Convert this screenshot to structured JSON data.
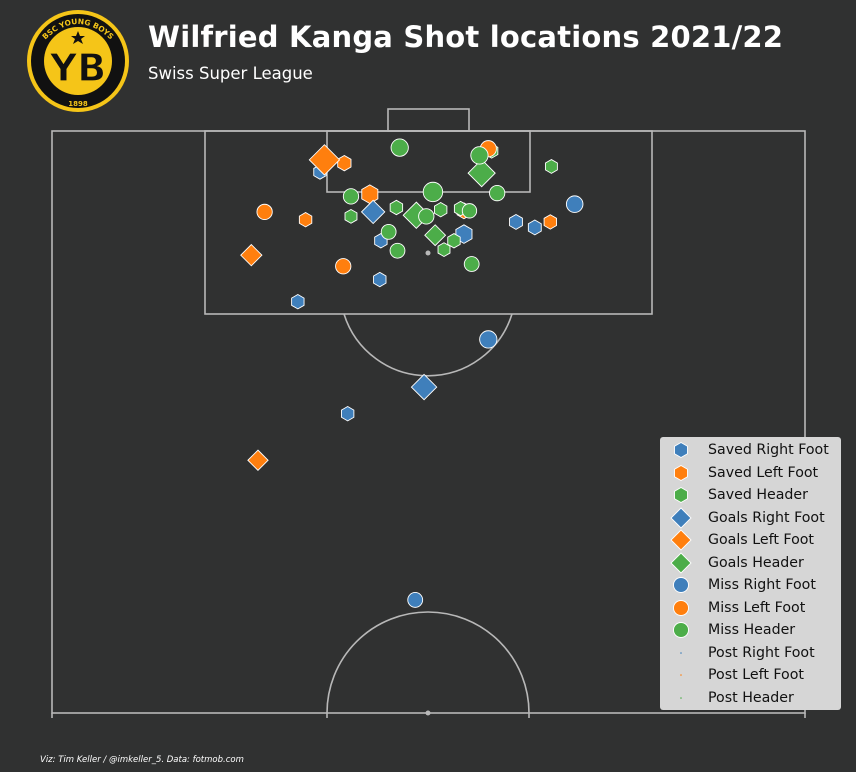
{
  "header": {
    "title": "Wilfried Kanga Shot locations 2021/22",
    "subtitle": "Swiss Super League",
    "logo_top_text": "BSC YOUNG BOYS",
    "logo_letters": "YB",
    "logo_year": "1898"
  },
  "footer": {
    "credit": "Viz: Tim Keller / @imkeller_5. Data: fotmob.com"
  },
  "colors": {
    "background": "#303131",
    "pitch_lines": "#b8b8b8",
    "right_foot": "#3f7fbb",
    "left_foot": "#ff7f0e",
    "header": "#4cad49",
    "legend_bg": "#d6d6d6",
    "logo_yellow": "#f5c518",
    "logo_black": "#111111"
  },
  "chart_data": {
    "type": "scatter",
    "title": "Wilfried Kanga Shot locations 2021/22",
    "subtitle": "Swiss Super League",
    "pitch": {
      "orientation": "vertical-half",
      "attacking": "top",
      "length_m": 105,
      "width_m": 68
    },
    "marker_shapes": {
      "Saved": "hexagon",
      "Goals": "diamond",
      "Miss": "circle",
      "Post": "point"
    },
    "marker_colors": {
      "Right Foot": "#3f7fbb",
      "Left Foot": "#ff7f0e",
      "Header": "#4cad49"
    },
    "size_note": "marker size encodes xG",
    "legend_placement": "lower-right",
    "legend": [
      "Saved Right Foot",
      "Saved Left Foot",
      "Saved Header",
      "Goals Right Foot",
      "Goals Left Foot",
      "Goals Header",
      "Miss Right Foot",
      "Miss Left Foot",
      "Miss Header",
      "Post Right Foot",
      "Post Left Foot",
      "Post Header"
    ],
    "series": [
      {
        "name": "Saved Right Foot",
        "outcome": "Saved",
        "body_part": "Right Foot",
        "shape": "hexagon",
        "color": "#3f7fbb",
        "points": [
          {
            "x": 24.2,
            "y": 101.3,
            "xg": 0.05
          },
          {
            "x": 29.7,
            "y": 95.1,
            "xg": 0.05
          },
          {
            "x": 37.2,
            "y": 95.7,
            "xg": 0.16
          },
          {
            "x": 41.9,
            "y": 96.8,
            "xg": 0.06
          },
          {
            "x": 43.6,
            "y": 96.3,
            "xg": 0.06
          },
          {
            "x": 29.6,
            "y": 91.6,
            "xg": 0.05
          },
          {
            "x": 22.2,
            "y": 89.6,
            "xg": 0.05
          },
          {
            "x": 26.7,
            "y": 79.5,
            "xg": 0.05
          }
        ]
      },
      {
        "name": "Saved Left Foot",
        "outcome": "Saved",
        "body_part": "Left Foot",
        "shape": "hexagon",
        "color": "#ff7f0e",
        "points": [
          {
            "x": 26.4,
            "y": 102.1,
            "xg": 0.07
          },
          {
            "x": 22.9,
            "y": 97.0,
            "xg": 0.05
          },
          {
            "x": 28.7,
            "y": 99.3,
            "xg": 0.16
          },
          {
            "x": 37.2,
            "y": 97.8,
            "xg": 0.08
          },
          {
            "x": 45.0,
            "y": 96.8,
            "xg": 0.05
          }
        ]
      },
      {
        "name": "Saved Header",
        "outcome": "Saved",
        "body_part": "Header",
        "shape": "hexagon",
        "color": "#4cad49",
        "points": [
          {
            "x": 39.7,
            "y": 103.2,
            "xg": 0.05
          },
          {
            "x": 45.1,
            "y": 101.8,
            "xg": 0.04
          },
          {
            "x": 31.1,
            "y": 98.1,
            "xg": 0.05
          },
          {
            "x": 27.0,
            "y": 97.3,
            "xg": 0.04
          },
          {
            "x": 35.1,
            "y": 97.9,
            "xg": 0.05
          },
          {
            "x": 36.9,
            "y": 98.0,
            "xg": 0.05
          },
          {
            "x": 36.3,
            "y": 95.1,
            "xg": 0.05
          },
          {
            "x": 35.4,
            "y": 94.3,
            "xg": 0.04
          }
        ]
      },
      {
        "name": "Goals Right Foot",
        "outcome": "Goals",
        "body_part": "Right Foot",
        "shape": "diamond",
        "color": "#3f7fbb",
        "points": [
          {
            "x": 29.0,
            "y": 97.7,
            "xg": 0.16
          },
          {
            "x": 33.6,
            "y": 81.9,
            "xg": 0.22
          }
        ]
      },
      {
        "name": "Goals Left Foot",
        "outcome": "Goals",
        "body_part": "Left Foot",
        "shape": "diamond",
        "color": "#ff7f0e",
        "points": [
          {
            "x": 24.6,
            "y": 102.4,
            "xg": 0.4
          },
          {
            "x": 18.0,
            "y": 93.8,
            "xg": 0.11
          },
          {
            "x": 18.6,
            "y": 75.3,
            "xg": 0.09
          }
        ]
      },
      {
        "name": "Goals Header",
        "outcome": "Goals",
        "body_part": "Header",
        "shape": "diamond",
        "color": "#4cad49",
        "points": [
          {
            "x": 38.8,
            "y": 101.2,
            "xg": 0.28
          },
          {
            "x": 32.9,
            "y": 97.4,
            "xg": 0.25
          },
          {
            "x": 34.6,
            "y": 95.6,
            "xg": 0.1
          }
        ]
      },
      {
        "name": "Miss Right Foot",
        "outcome": "Miss",
        "body_part": "Right Foot",
        "shape": "circle",
        "color": "#3f7fbb",
        "points": [
          {
            "x": 47.2,
            "y": 98.4,
            "xg": 0.1
          },
          {
            "x": 39.4,
            "y": 86.2,
            "xg": 0.12
          },
          {
            "x": 32.8,
            "y": 62.7,
            "xg": 0.06
          }
        ]
      },
      {
        "name": "Miss Left Foot",
        "outcome": "Miss",
        "body_part": "Left Foot",
        "shape": "circle",
        "color": "#ff7f0e",
        "points": [
          {
            "x": 19.2,
            "y": 97.7,
            "xg": 0.07
          },
          {
            "x": 26.3,
            "y": 92.8,
            "xg": 0.07
          },
          {
            "x": 39.4,
            "y": 103.4,
            "xg": 0.09
          }
        ]
      },
      {
        "name": "Miss Header",
        "outcome": "Miss",
        "body_part": "Header",
        "shape": "circle",
        "color": "#4cad49",
        "points": [
          {
            "x": 31.4,
            "y": 103.5,
            "xg": 0.12
          },
          {
            "x": 38.6,
            "y": 102.8,
            "xg": 0.12
          },
          {
            "x": 27.0,
            "y": 99.1,
            "xg": 0.07
          },
          {
            "x": 34.4,
            "y": 99.5,
            "xg": 0.19
          },
          {
            "x": 40.2,
            "y": 99.4,
            "xg": 0.07
          },
          {
            "x": 30.4,
            "y": 95.9,
            "xg": 0.06
          },
          {
            "x": 31.2,
            "y": 94.2,
            "xg": 0.06
          },
          {
            "x": 33.8,
            "y": 97.3,
            "xg": 0.07
          },
          {
            "x": 37.7,
            "y": 97.8,
            "xg": 0.05
          },
          {
            "x": 37.9,
            "y": 93.0,
            "xg": 0.06
          }
        ]
      },
      {
        "name": "Post Right Foot",
        "outcome": "Post",
        "body_part": "Right Foot",
        "shape": "point",
        "color": "#3f7fbb",
        "points": []
      },
      {
        "name": "Post Left Foot",
        "outcome": "Post",
        "body_part": "Left Foot",
        "shape": "point",
        "color": "#ff7f0e",
        "points": []
      },
      {
        "name": "Post Header",
        "outcome": "Post",
        "body_part": "Header",
        "shape": "point",
        "color": "#4cad49",
        "points": []
      }
    ]
  }
}
